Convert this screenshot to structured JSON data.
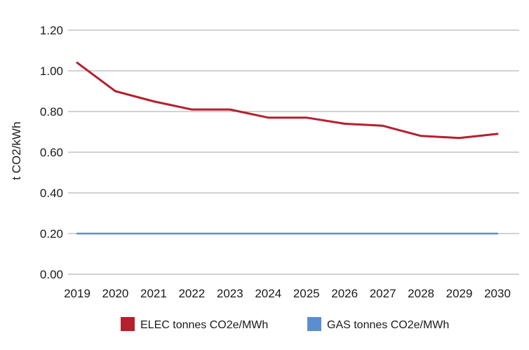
{
  "chart_data": {
    "type": "line",
    "title": "",
    "xlabel": "",
    "ylabel": "t CO2/kWh",
    "categories": [
      "2019",
      "2020",
      "2021",
      "2022",
      "2023",
      "2024",
      "2025",
      "2026",
      "2027",
      "2028",
      "2029",
      "2030"
    ],
    "ylim": [
      0,
      1.2
    ],
    "yticks": [
      "0.00",
      "0.20",
      "0.40",
      "0.60",
      "0.80",
      "1.00",
      "1.20"
    ],
    "grid": "horizontal",
    "legend_position": "bottom",
    "series": [
      {
        "name": "ELEC tonnes CO2e/MWh",
        "color": "#b5202e",
        "values": [
          1.04,
          0.9,
          0.85,
          0.81,
          0.81,
          0.77,
          0.77,
          0.74,
          0.73,
          0.68,
          0.67,
          0.69
        ]
      },
      {
        "name": "GAS tonnes CO2e/MWh",
        "color": "#5b8ed1",
        "values": [
          0.2,
          0.2,
          0.2,
          0.2,
          0.2,
          0.2,
          0.2,
          0.2,
          0.2,
          0.2,
          0.2,
          0.2
        ]
      }
    ]
  }
}
